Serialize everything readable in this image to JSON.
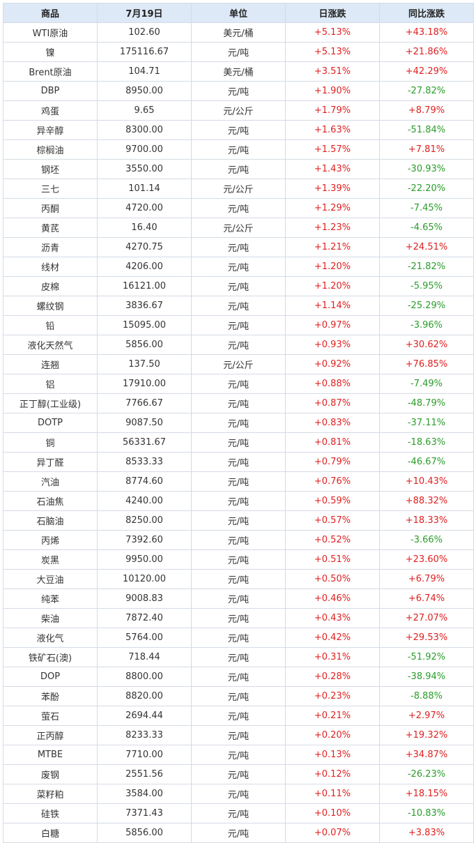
{
  "colors": {
    "up": "#e02020",
    "down": "#2a9c2a",
    "header_bg": "#dde9f7",
    "border": "#d4dbe4"
  },
  "headers": [
    "商品",
    "7月19日",
    "单位",
    "日涨跌",
    "同比涨跌"
  ],
  "rows": [
    [
      "WTI原油",
      "102.60",
      "美元/桶",
      "+5.13%",
      "+43.18%"
    ],
    [
      "镍",
      "175116.67",
      "元/吨",
      "+5.13%",
      "+21.86%"
    ],
    [
      "Brent原油",
      "104.71",
      "美元/桶",
      "+3.51%",
      "+42.29%"
    ],
    [
      "DBP",
      "8950.00",
      "元/吨",
      "+1.90%",
      "-27.82%"
    ],
    [
      "鸡蛋",
      "9.65",
      "元/公斤",
      "+1.79%",
      "+8.79%"
    ],
    [
      "异辛醇",
      "8300.00",
      "元/吨",
      "+1.63%",
      "-51.84%"
    ],
    [
      "棕榈油",
      "9700.00",
      "元/吨",
      "+1.57%",
      "+7.81%"
    ],
    [
      "钢坯",
      "3550.00",
      "元/吨",
      "+1.43%",
      "-30.93%"
    ],
    [
      "三七",
      "101.14",
      "元/公斤",
      "+1.39%",
      "-22.20%"
    ],
    [
      "丙酮",
      "4720.00",
      "元/吨",
      "+1.29%",
      "-7.45%"
    ],
    [
      "黄芪",
      "16.40",
      "元/公斤",
      "+1.23%",
      "-4.65%"
    ],
    [
      "沥青",
      "4270.75",
      "元/吨",
      "+1.21%",
      "+24.51%"
    ],
    [
      "线材",
      "4206.00",
      "元/吨",
      "+1.20%",
      "-21.82%"
    ],
    [
      "皮棉",
      "16121.00",
      "元/吨",
      "+1.20%",
      "-5.95%"
    ],
    [
      "螺纹钢",
      "3836.67",
      "元/吨",
      "+1.14%",
      "-25.29%"
    ],
    [
      "铅",
      "15095.00",
      "元/吨",
      "+0.97%",
      "-3.96%"
    ],
    [
      "液化天然气",
      "5856.00",
      "元/吨",
      "+0.93%",
      "+30.62%"
    ],
    [
      "连翘",
      "137.50",
      "元/公斤",
      "+0.92%",
      "+76.85%"
    ],
    [
      "铝",
      "17910.00",
      "元/吨",
      "+0.88%",
      "-7.49%"
    ],
    [
      "正丁醇(工业级)",
      "7766.67",
      "元/吨",
      "+0.87%",
      "-48.79%"
    ],
    [
      "DOTP",
      "9087.50",
      "元/吨",
      "+0.83%",
      "-37.11%"
    ],
    [
      "铜",
      "56331.67",
      "元/吨",
      "+0.81%",
      "-18.63%"
    ],
    [
      "异丁醛",
      "8533.33",
      "元/吨",
      "+0.79%",
      "-46.67%"
    ],
    [
      "汽油",
      "8774.60",
      "元/吨",
      "+0.76%",
      "+10.43%"
    ],
    [
      "石油焦",
      "4240.00",
      "元/吨",
      "+0.59%",
      "+88.32%"
    ],
    [
      "石脑油",
      "8250.00",
      "元/吨",
      "+0.57%",
      "+18.33%"
    ],
    [
      "丙烯",
      "7392.60",
      "元/吨",
      "+0.52%",
      "-3.66%"
    ],
    [
      "炭黑",
      "9950.00",
      "元/吨",
      "+0.51%",
      "+23.60%"
    ],
    [
      "大豆油",
      "10120.00",
      "元/吨",
      "+0.50%",
      "+6.79%"
    ],
    [
      "纯苯",
      "9008.83",
      "元/吨",
      "+0.46%",
      "+6.74%"
    ],
    [
      "柴油",
      "7872.40",
      "元/吨",
      "+0.43%",
      "+27.07%"
    ],
    [
      "液化气",
      "5764.00",
      "元/吨",
      "+0.42%",
      "+29.53%"
    ],
    [
      "铁矿石(澳)",
      "718.44",
      "元/吨",
      "+0.31%",
      "-51.92%"
    ],
    [
      "DOP",
      "8800.00",
      "元/吨",
      "+0.28%",
      "-38.94%"
    ],
    [
      "苯酚",
      "8820.00",
      "元/吨",
      "+0.23%",
      "-8.88%"
    ],
    [
      "萤石",
      "2694.44",
      "元/吨",
      "+0.21%",
      "+2.97%"
    ],
    [
      "正丙醇",
      "8233.33",
      "元/吨",
      "+0.20%",
      "+19.32%"
    ],
    [
      "MTBE",
      "7710.00",
      "元/吨",
      "+0.13%",
      "+34.87%"
    ],
    [
      "废钢",
      "2551.56",
      "元/吨",
      "+0.12%",
      "-26.23%"
    ],
    [
      "菜籽粕",
      "3584.00",
      "元/吨",
      "+0.11%",
      "+18.15%"
    ],
    [
      "硅铁",
      "7371.43",
      "元/吨",
      "+0.10%",
      "-10.83%"
    ],
    [
      "白糖",
      "5856.00",
      "元/吨",
      "+0.07%",
      "+3.83%"
    ]
  ]
}
